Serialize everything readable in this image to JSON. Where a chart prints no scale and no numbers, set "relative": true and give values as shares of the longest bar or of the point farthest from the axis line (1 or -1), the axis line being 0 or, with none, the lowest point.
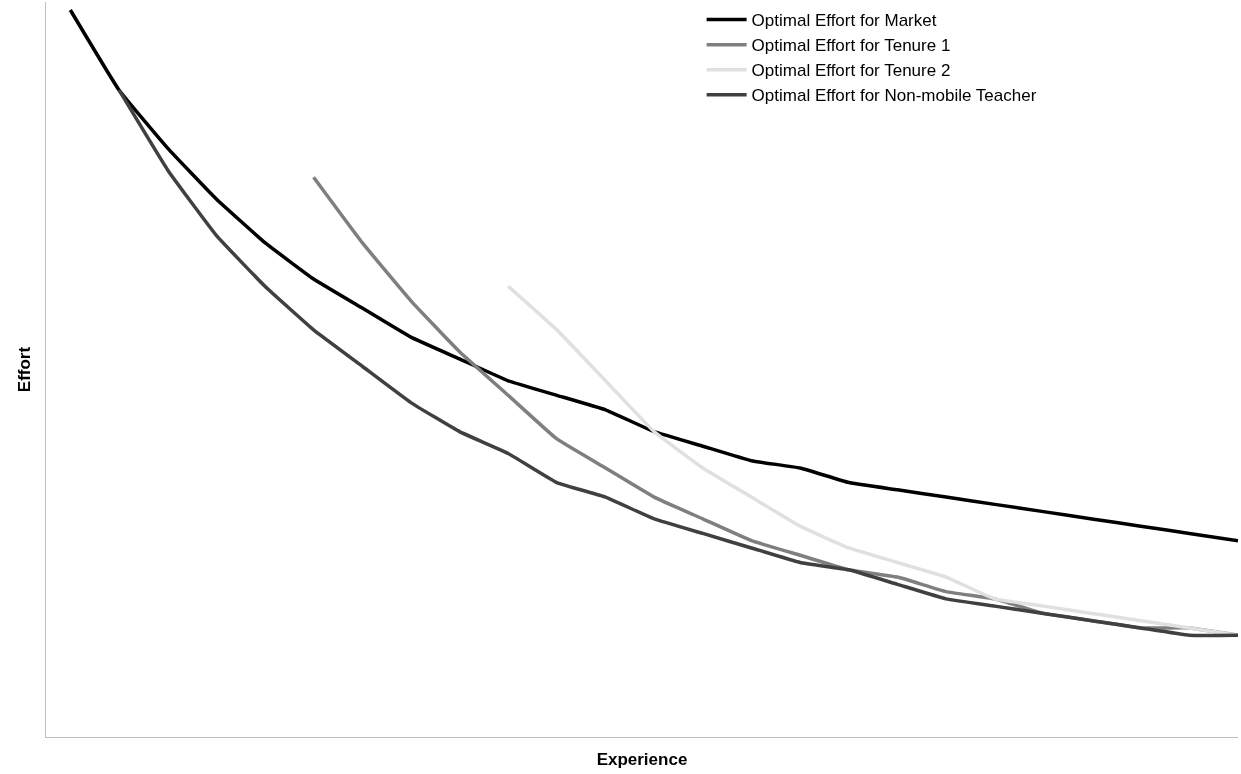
{
  "chart_data": {
    "type": "line",
    "relative": true,
    "xlabel": "Experience",
    "ylabel": "Effort",
    "legend": "top right",
    "marker": "none",
    "line_style": "solid",
    "categories": [
      null,
      null,
      null,
      null,
      null,
      null,
      null,
      null,
      null,
      null,
      null,
      null,
      null,
      null,
      null,
      null,
      null,
      null,
      null,
      null,
      null,
      null,
      null,
      null,
      null
    ],
    "series": [
      {
        "name": "Optimal Effort for Market",
        "color": "#000000",
        "values": [
          1.0,
          0.89,
          0.81,
          0.74,
          0.68,
          0.63,
          0.59,
          0.55,
          0.52,
          0.49,
          0.47,
          0.45,
          0.42,
          0.4,
          0.38,
          0.37,
          0.35,
          0.34,
          0.33,
          0.32,
          0.31,
          0.3,
          0.29,
          0.28,
          0.27
        ]
      },
      {
        "name": "Optimal Effort for Tenure 1",
        "color": "#7f7f7f",
        "values": [
          null,
          null,
          null,
          null,
          null,
          0.77,
          0.68,
          0.6,
          0.53,
          0.47,
          0.41,
          0.37,
          0.33,
          0.3,
          0.27,
          0.25,
          0.23,
          0.22,
          0.2,
          0.19,
          0.17,
          0.16,
          0.15,
          0.15,
          0.14
        ]
      },
      {
        "name": "Optimal Effort for Tenure 2",
        "color": "#e0e0e0",
        "values": [
          null,
          null,
          null,
          null,
          null,
          null,
          null,
          null,
          null,
          0.62,
          0.56,
          0.49,
          0.42,
          0.37,
          0.33,
          0.29,
          0.26,
          0.24,
          0.22,
          0.19,
          0.18,
          0.17,
          0.16,
          0.15,
          0.14
        ]
      },
      {
        "name": "Optimal Effort for Non-mobile Teacher",
        "color": "#404040",
        "values": [
          null,
          0.89,
          0.78,
          0.69,
          0.62,
          0.56,
          0.51,
          0.46,
          0.42,
          0.39,
          0.35,
          0.33,
          0.3,
          0.28,
          0.26,
          0.24,
          0.23,
          0.21,
          0.19,
          0.18,
          0.17,
          0.16,
          0.15,
          0.14,
          0.14
        ]
      }
    ]
  }
}
